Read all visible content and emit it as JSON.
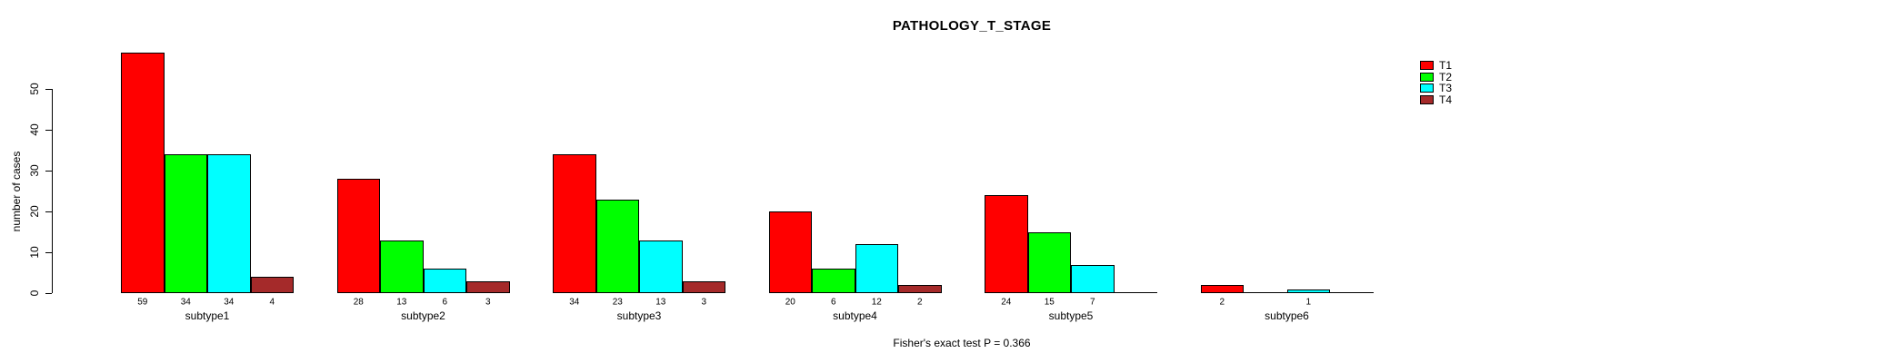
{
  "figure": {
    "title": "PATHOLOGY_T_STAGE",
    "annotation": "Fisher's exact test P = 0.366"
  },
  "chart_data": {
    "type": "bar",
    "title": "PATHOLOGY_T_STAGE",
    "xlabel": "",
    "ylabel": "number of cases",
    "categories": [
      "subtype1",
      "subtype2",
      "subtype3",
      "subtype4",
      "subtype5",
      "subtype6"
    ],
    "series": [
      {
        "name": "T1",
        "color": "#ff0000",
        "values": [
          59,
          28,
          34,
          20,
          24,
          2
        ]
      },
      {
        "name": "T2",
        "color": "#00ff00",
        "values": [
          34,
          13,
          23,
          6,
          15,
          0
        ]
      },
      {
        "name": "T3",
        "color": "#00ffff",
        "values": [
          34,
          6,
          13,
          12,
          7,
          1
        ]
      },
      {
        "name": "T4",
        "color": "#a52a2a",
        "values": [
          4,
          3,
          3,
          2,
          0,
          0
        ]
      }
    ],
    "yticks": [
      0,
      10,
      20,
      30,
      40,
      50
    ],
    "ylim": [
      0,
      59
    ],
    "grid": false,
    "legend_position": "top-right",
    "bar_value_labels": "shown under axis for nonzero bars only",
    "annotation": "Fisher's exact test P = 0.366"
  }
}
